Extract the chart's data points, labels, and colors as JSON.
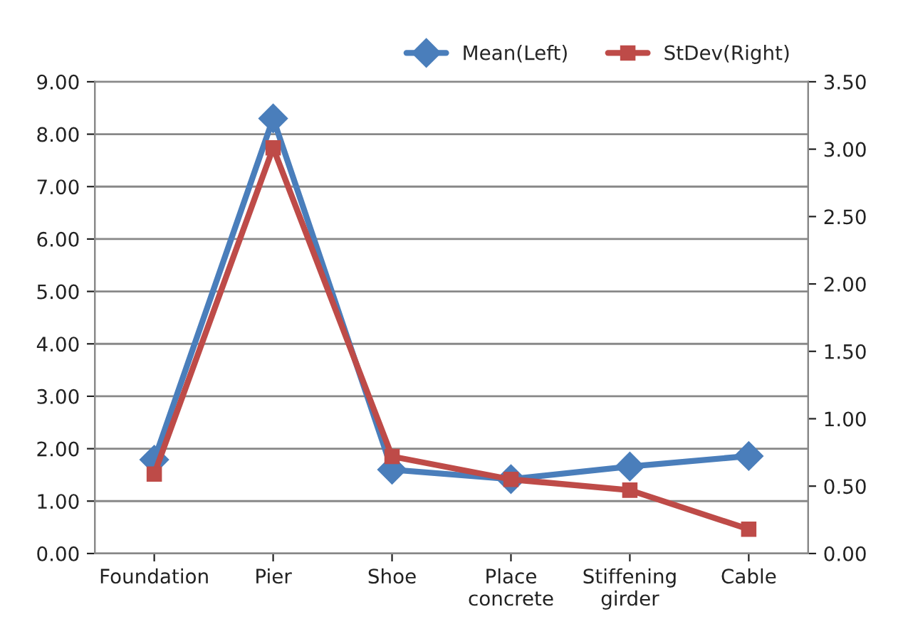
{
  "chart_data": {
    "type": "line",
    "categories": [
      "Foundation",
      "Pier",
      "Shoe",
      "Place\nconcrete",
      "Stiffening\ngirder",
      "Cable"
    ],
    "series": [
      {
        "name": "Mean(Left)",
        "color": "#4a7ebb",
        "marker": "diamond",
        "values": [
          1.79,
          8.3,
          1.6,
          1.42,
          1.66,
          1.86
        ]
      },
      {
        "name": "StDev(Right)",
        "color": "#be4b48",
        "marker": "square",
        "axis": "y2",
        "values": [
          0.59,
          3.01,
          0.72,
          0.55,
          0.47,
          0.18
        ]
      }
    ],
    "ylim": [
      0,
      9
    ],
    "yticks": [
      {
        "value": 0,
        "label": "0.00"
      },
      {
        "value": 1,
        "label": "1.00"
      },
      {
        "value": 2,
        "label": "2.00"
      },
      {
        "value": 3,
        "label": "3.00"
      },
      {
        "value": 4,
        "label": "4.00"
      },
      {
        "value": 5,
        "label": "5.00"
      },
      {
        "value": 6,
        "label": "6.00"
      },
      {
        "value": 7,
        "label": "7.00"
      },
      {
        "value": 8,
        "label": "8.00"
      },
      {
        "value": 9,
        "label": "9.00"
      }
    ],
    "y2lim": [
      0,
      3.5
    ],
    "y2ticks": [
      {
        "value": 0,
        "label": "0.00"
      },
      {
        "value": 0.5,
        "label": "0.50"
      },
      {
        "value": 1,
        "label": "1.00"
      },
      {
        "value": 1.5,
        "label": "1.50"
      },
      {
        "value": 2,
        "label": "2.00"
      },
      {
        "value": 2.5,
        "label": "2.50"
      },
      {
        "value": 3,
        "label": "3.00"
      },
      {
        "value": 3.5,
        "label": "3.50"
      }
    ],
    "grid": "y",
    "legend": "top right",
    "line_style": "solid"
  }
}
